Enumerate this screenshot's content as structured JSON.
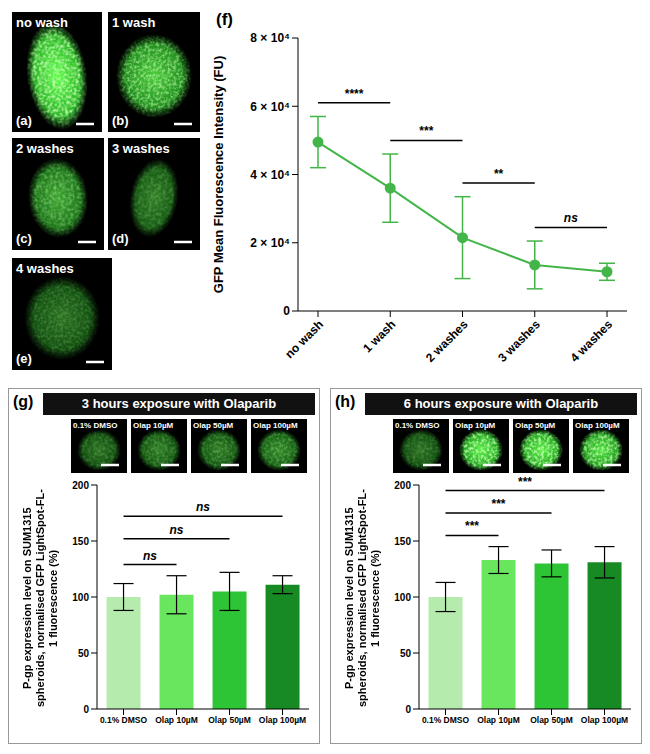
{
  "images": [
    {
      "panel_label": "(a)",
      "caption": "no wash"
    },
    {
      "panel_label": "(b)",
      "caption": "1 wash"
    },
    {
      "panel_label": "(c)",
      "caption": "2 washes"
    },
    {
      "panel_label": "(d)",
      "caption": "3 washes"
    },
    {
      "panel_label": "(e)",
      "caption": "4 washes"
    }
  ],
  "chart_data": [
    {
      "type": "line",
      "panel_label": "(f)",
      "categories": [
        "no wash",
        "1 wash",
        "2 washes",
        "3 washes",
        "4 washes"
      ],
      "values": [
        49500,
        36000,
        21500,
        13500,
        11500
      ],
      "errors": [
        7500,
        10000,
        12000,
        7000,
        2500
      ],
      "color": "#43b549",
      "marker": "circle",
      "ylabel": "GFP Mean Fluorescence  Intensity (FU)",
      "ylim": [
        0,
        80000
      ],
      "yticks": [
        0,
        {
          "value": 20000,
          "label": "2 × 10⁴"
        },
        {
          "value": 40000,
          "label": "4 × 10⁴"
        },
        {
          "value": 60000,
          "label": "6 × 10⁴"
        },
        {
          "value": 80000,
          "label": "8 × 10⁴"
        }
      ],
      "grid": false,
      "annotations": [
        {
          "from": "no wash",
          "to": "1 wash",
          "label": "****"
        },
        {
          "from": "1 wash",
          "to": "2 washes",
          "label": "***"
        },
        {
          "from": "2 washes",
          "to": "3 washes",
          "label": "**"
        },
        {
          "from": "3 washes",
          "to": "4 washes",
          "label": "ns"
        }
      ]
    },
    {
      "type": "bar",
      "panel_label": "(g)",
      "title": "3 hours exposure with Olaparib",
      "image_labels": [
        "0.1% DMSO",
        "Olap 10µM",
        "Olap 50µM",
        "Olap 100µM"
      ],
      "categories": [
        "0.1% DMSO",
        "Olap 10µM",
        "Olap 50µM",
        "Olap 100µM"
      ],
      "values": [
        100,
        102,
        105,
        111
      ],
      "errors": [
        12,
        17,
        17,
        8
      ],
      "colors": [
        "#b5ecad",
        "#69e65e",
        "#2dc436",
        "#178a24"
      ],
      "ylabel": "P-gp expression level on SUM1315 spheroids, normalised GFP LightSpot-FL-1 fluorescence (%)",
      "ylim": [
        0,
        200
      ],
      "yticks": [
        0,
        50,
        100,
        150,
        200
      ],
      "grid": false,
      "annotations": [
        {
          "from": "0.1% DMSO",
          "to": "Olap 10µM",
          "label": "ns"
        },
        {
          "from": "0.1% DMSO",
          "to": "Olap 50µM",
          "label": "ns"
        },
        {
          "from": "0.1% DMSO",
          "to": "Olap 100µM",
          "label": "ns"
        }
      ]
    },
    {
      "type": "bar",
      "panel_label": "(h)",
      "title": "6 hours exposure with Olaparib",
      "image_labels": [
        "0.1% DMSO",
        "Olap 10µM",
        "Olap 50µM",
        "Olap 100µM"
      ],
      "categories": [
        "0.1% DMSO",
        "Olap 10µM",
        "Olap 50µM",
        "Olap 100µM"
      ],
      "values": [
        100,
        133,
        130,
        131
      ],
      "errors": [
        13,
        12,
        12,
        14
      ],
      "colors": [
        "#b5ecad",
        "#69e65e",
        "#2dc436",
        "#178a24"
      ],
      "ylabel": "P-gp expression level on SUM1315 spheroids, normalised GFP LightSpot-FL-1 fluorescence (%)",
      "ylim": [
        0,
        200
      ],
      "yticks": [
        0,
        50,
        100,
        150,
        200
      ],
      "grid": false,
      "annotations": [
        {
          "from": "0.1% DMSO",
          "to": "Olap 10µM",
          "label": "***"
        },
        {
          "from": "0.1% DMSO",
          "to": "Olap 50µM",
          "label": "***"
        },
        {
          "from": "0.1% DMSO",
          "to": "Olap 100µM",
          "label": "***"
        }
      ]
    }
  ]
}
